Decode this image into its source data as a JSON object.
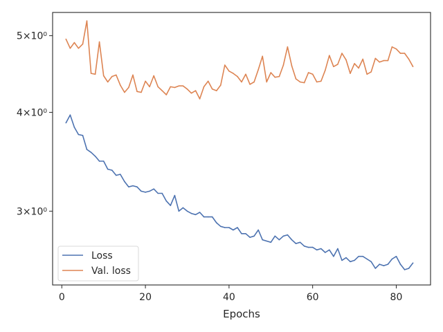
{
  "chart_data": {
    "type": "line",
    "xlabel": "Epochs",
    "ylabel": "",
    "xlim": [
      -2.2,
      88.2
    ],
    "ylim": [
      2.42,
      5.35
    ],
    "y_scale": "log",
    "x_ticks": [
      0,
      20,
      40,
      60,
      80
    ],
    "x_tick_labels": [
      "0",
      "20",
      "40",
      "60",
      "80"
    ],
    "y_ticks": [
      3,
      4,
      5
    ],
    "y_tick_labels": [
      "3×10⁰",
      "4×10⁰",
      "5×10⁰"
    ],
    "grid": false,
    "legend_position": "lower-left",
    "series": [
      {
        "name": "Loss",
        "color": "#4c72b0",
        "x": [
          1,
          2,
          3,
          4,
          5,
          6,
          7,
          8,
          9,
          10,
          11,
          12,
          13,
          14,
          15,
          16,
          17,
          18,
          19,
          20,
          21,
          22,
          23,
          24,
          25,
          26,
          27,
          28,
          29,
          30,
          31,
          32,
          33,
          34,
          35,
          36,
          37,
          38,
          39,
          40,
          41,
          42,
          43,
          44,
          45,
          46,
          47,
          48,
          49,
          50,
          51,
          52,
          53,
          54,
          55,
          56,
          57,
          58,
          59,
          60,
          61,
          62,
          63,
          64,
          65,
          66,
          67,
          68,
          69,
          70,
          71,
          72,
          73,
          74,
          75,
          76,
          77,
          78,
          79,
          80,
          81,
          82,
          83,
          84
        ],
        "values": [
          3.88,
          3.97,
          3.83,
          3.75,
          3.74,
          3.59,
          3.56,
          3.52,
          3.47,
          3.47,
          3.39,
          3.38,
          3.33,
          3.34,
          3.27,
          3.22,
          3.23,
          3.22,
          3.18,
          3.17,
          3.18,
          3.2,
          3.16,
          3.16,
          3.09,
          3.05,
          3.14,
          3.0,
          3.03,
          3.0,
          2.98,
          2.97,
          2.99,
          2.95,
          2.95,
          2.95,
          2.9,
          2.87,
          2.86,
          2.86,
          2.84,
          2.86,
          2.81,
          2.81,
          2.78,
          2.79,
          2.84,
          2.76,
          2.75,
          2.74,
          2.79,
          2.76,
          2.79,
          2.8,
          2.76,
          2.73,
          2.74,
          2.71,
          2.7,
          2.7,
          2.68,
          2.69,
          2.66,
          2.68,
          2.63,
          2.69,
          2.6,
          2.62,
          2.59,
          2.6,
          2.63,
          2.63,
          2.61,
          2.59,
          2.54,
          2.57,
          2.56,
          2.57,
          2.61,
          2.63,
          2.57,
          2.53,
          2.54,
          2.58
        ]
      },
      {
        "name": "Val. loss",
        "color": "#dd8452",
        "x": [
          1,
          2,
          3,
          4,
          5,
          6,
          7,
          8,
          9,
          10,
          11,
          12,
          13,
          14,
          15,
          16,
          17,
          18,
          19,
          20,
          21,
          22,
          23,
          24,
          25,
          26,
          27,
          28,
          29,
          30,
          31,
          32,
          33,
          34,
          35,
          36,
          37,
          38,
          39,
          40,
          41,
          42,
          43,
          44,
          45,
          46,
          47,
          48,
          49,
          50,
          51,
          52,
          53,
          54,
          55,
          56,
          57,
          58,
          59,
          60,
          61,
          62,
          63,
          64,
          65,
          66,
          67,
          68,
          69,
          70,
          71,
          72,
          73,
          74,
          75,
          76,
          77,
          78,
          79,
          80,
          81,
          82,
          83,
          84
        ],
        "values": [
          4.95,
          4.82,
          4.9,
          4.82,
          4.88,
          5.22,
          4.48,
          4.47,
          4.91,
          4.45,
          4.37,
          4.44,
          4.46,
          4.33,
          4.24,
          4.3,
          4.46,
          4.25,
          4.24,
          4.38,
          4.31,
          4.45,
          4.31,
          4.26,
          4.21,
          4.31,
          4.3,
          4.32,
          4.32,
          4.28,
          4.23,
          4.26,
          4.16,
          4.31,
          4.38,
          4.28,
          4.26,
          4.33,
          4.59,
          4.51,
          4.48,
          4.44,
          4.37,
          4.47,
          4.34,
          4.37,
          4.53,
          4.71,
          4.37,
          4.49,
          4.43,
          4.44,
          4.59,
          4.84,
          4.58,
          4.41,
          4.37,
          4.36,
          4.49,
          4.47,
          4.37,
          4.38,
          4.52,
          4.72,
          4.57,
          4.6,
          4.75,
          4.66,
          4.48,
          4.61,
          4.55,
          4.67,
          4.47,
          4.5,
          4.68,
          4.63,
          4.65,
          4.65,
          4.84,
          4.81,
          4.75,
          4.75,
          4.67,
          4.57
        ]
      }
    ]
  }
}
